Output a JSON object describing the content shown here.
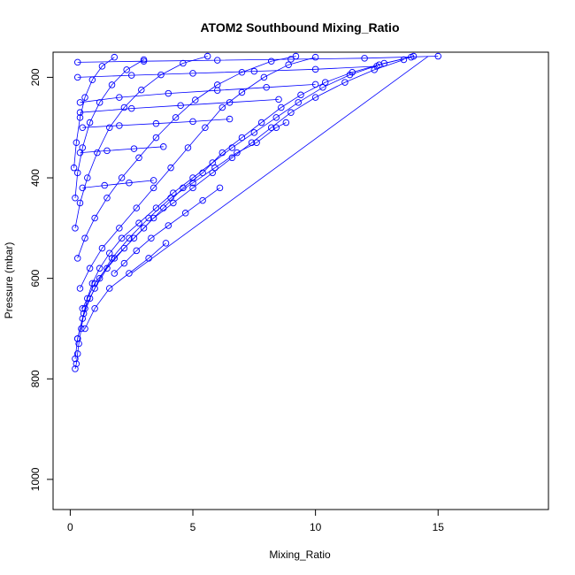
{
  "chart_data": {
    "type": "scatter",
    "title": "ATOM2 Southbound Mixing_Ratio",
    "xlabel": "Mixing_Ratio",
    "ylabel": "Pressure (mbar)",
    "xlim": [
      -0.7,
      19.5
    ],
    "ylim": [
      1060,
      150
    ],
    "y_reversed": true,
    "x_ticks": [
      0,
      5,
      10,
      15
    ],
    "y_ticks": [
      200,
      400,
      600,
      800,
      1000
    ],
    "grid": false,
    "legend": "none",
    "marker": "open-circle",
    "connected": true,
    "color": "#0000ff",
    "series": [
      {
        "values": [
          [
            0.2,
            780
          ],
          [
            0.25,
            770
          ],
          [
            0.3,
            750
          ],
          [
            0.35,
            730
          ],
          [
            0.45,
            700
          ],
          [
            0.55,
            670
          ],
          [
            0.7,
            640
          ],
          [
            0.9,
            610
          ],
          [
            1.2,
            580
          ],
          [
            1.6,
            550
          ],
          [
            2.1,
            520
          ],
          [
            2.8,
            490
          ],
          [
            3.5,
            460
          ],
          [
            4.2,
            430
          ],
          [
            5.0,
            400
          ],
          [
            5.8,
            370
          ],
          [
            6.6,
            340
          ],
          [
            7.5,
            310
          ],
          [
            8.4,
            280
          ],
          [
            9.3,
            250
          ],
          [
            10.3,
            220
          ],
          [
            11.4,
            195
          ],
          [
            12.6,
            175
          ],
          [
            14.0,
            158
          ]
        ]
      },
      {
        "values": [
          [
            0.2,
            760
          ],
          [
            0.3,
            720
          ],
          [
            0.5,
            680
          ],
          [
            0.8,
            640
          ],
          [
            1.2,
            600
          ],
          [
            1.7,
            560
          ],
          [
            2.4,
            520
          ],
          [
            3.2,
            480
          ],
          [
            4.1,
            440
          ],
          [
            5.0,
            410
          ],
          [
            5.9,
            380
          ],
          [
            6.8,
            350
          ],
          [
            7.6,
            330
          ],
          [
            8.4,
            300
          ],
          [
            8.8,
            290
          ]
        ]
      },
      {
        "values": [
          [
            0.3,
            720
          ],
          [
            0.6,
            660
          ],
          [
            1.0,
            620
          ],
          [
            1.5,
            580
          ],
          [
            2.2,
            540
          ],
          [
            3.0,
            500
          ],
          [
            3.8,
            460
          ],
          [
            4.6,
            420
          ],
          [
            5.4,
            390
          ],
          [
            6.2,
            350
          ],
          [
            7.0,
            320
          ],
          [
            7.8,
            290
          ],
          [
            8.6,
            260
          ],
          [
            9.4,
            235
          ],
          [
            10.4,
            210
          ],
          [
            11.5,
            190
          ],
          [
            12.8,
            172
          ],
          [
            13.9,
            160
          ]
        ]
      },
      {
        "values": [
          [
            0.5,
            660
          ],
          [
            1.0,
            610
          ],
          [
            1.8,
            560
          ],
          [
            2.6,
            520
          ],
          [
            3.4,
            480
          ],
          [
            4.2,
            450
          ],
          [
            5.0,
            420
          ],
          [
            5.8,
            390
          ],
          [
            6.6,
            360
          ],
          [
            7.4,
            330
          ],
          [
            8.2,
            300
          ],
          [
            9.0,
            270
          ],
          [
            10.0,
            240
          ],
          [
            11.2,
            210
          ],
          [
            12.4,
            185
          ],
          [
            13.6,
            165
          ]
        ]
      },
      {
        "values": [
          [
            0.4,
            620
          ],
          [
            0.8,
            580
          ],
          [
            1.3,
            540
          ],
          [
            2.0,
            500
          ],
          [
            2.7,
            460
          ],
          [
            3.4,
            420
          ],
          [
            4.1,
            380
          ],
          [
            4.8,
            340
          ],
          [
            5.5,
            300
          ],
          [
            6.2,
            260
          ],
          [
            7.0,
            230
          ],
          [
            7.9,
            200
          ],
          [
            8.9,
            175
          ],
          [
            10.0,
            160
          ]
        ]
      },
      {
        "values": [
          [
            0.3,
            560
          ],
          [
            0.6,
            520
          ],
          [
            1.0,
            480
          ],
          [
            1.5,
            440
          ],
          [
            2.1,
            400
          ],
          [
            2.8,
            360
          ],
          [
            3.5,
            320
          ],
          [
            4.3,
            280
          ],
          [
            5.1,
            245
          ],
          [
            6.0,
            215
          ],
          [
            7.0,
            190
          ],
          [
            8.2,
            168
          ],
          [
            9.2,
            158
          ]
        ]
      },
      {
        "values": [
          [
            0.2,
            500
          ],
          [
            0.4,
            450
          ],
          [
            0.7,
            400
          ],
          [
            1.1,
            350
          ],
          [
            1.6,
            300
          ],
          [
            2.2,
            260
          ],
          [
            2.9,
            225
          ],
          [
            3.7,
            195
          ],
          [
            4.6,
            172
          ],
          [
            5.6,
            158
          ]
        ]
      },
      {
        "values": [
          [
            0.2,
            440
          ],
          [
            0.3,
            390
          ],
          [
            0.5,
            340
          ],
          [
            0.8,
            290
          ],
          [
            1.2,
            250
          ],
          [
            1.7,
            215
          ],
          [
            2.3,
            185
          ],
          [
            3.0,
            165
          ]
        ]
      },
      {
        "values": [
          [
            0.15,
            380
          ],
          [
            0.25,
            330
          ],
          [
            0.4,
            280
          ],
          [
            0.6,
            240
          ],
          [
            0.9,
            205
          ],
          [
            1.3,
            178
          ],
          [
            1.8,
            160
          ]
        ]
      },
      {
        "values": [
          [
            0.6,
            700
          ],
          [
            1.0,
            660
          ],
          [
            1.6,
            620
          ],
          [
            2.4,
            590
          ],
          [
            3.2,
            560
          ],
          [
            3.9,
            530
          ]
        ]
      },
      {
        "values": [
          [
            1.8,
            590
          ],
          [
            2.2,
            570
          ],
          [
            2.7,
            545
          ],
          [
            3.3,
            520
          ],
          [
            4.0,
            495
          ],
          [
            4.7,
            470
          ],
          [
            5.4,
            445
          ],
          [
            6.1,
            420
          ]
        ]
      },
      {
        "values": [
          [
            0.4,
            250
          ],
          [
            2.0,
            240
          ],
          [
            4.0,
            232
          ],
          [
            6.0,
            226
          ],
          [
            8.0,
            220
          ],
          [
            10.0,
            214
          ]
        ]
      },
      {
        "values": [
          [
            0.3,
            200
          ],
          [
            2.5,
            196
          ],
          [
            5.0,
            192
          ],
          [
            7.5,
            188
          ],
          [
            10.0,
            184
          ],
          [
            12.5,
            178
          ]
        ]
      },
      {
        "values": [
          [
            0.5,
            300
          ],
          [
            2.0,
            296
          ],
          [
            3.5,
            292
          ],
          [
            5.0,
            288
          ],
          [
            6.5,
            283
          ]
        ]
      },
      {
        "values": [
          [
            0.4,
            350
          ],
          [
            1.5,
            346
          ],
          [
            2.6,
            342
          ],
          [
            3.8,
            338
          ]
        ]
      },
      {
        "values": [
          [
            0.3,
            170
          ],
          [
            3.0,
            168
          ],
          [
            6.0,
            166
          ],
          [
            9.0,
            164
          ],
          [
            12.0,
            162
          ],
          [
            15.0,
            158
          ]
        ]
      },
      {
        "values": [
          [
            0.4,
            270
          ],
          [
            2.5,
            262
          ],
          [
            4.5,
            256
          ],
          [
            6.5,
            250
          ],
          [
            8.5,
            244
          ]
        ]
      },
      {
        "values": [
          [
            0.5,
            420
          ],
          [
            1.4,
            415
          ],
          [
            2.4,
            410
          ],
          [
            3.4,
            405
          ]
        ]
      }
    ],
    "boundary_line": [
      [
        2.5,
        590
      ],
      [
        14.6,
        158
      ]
    ]
  }
}
